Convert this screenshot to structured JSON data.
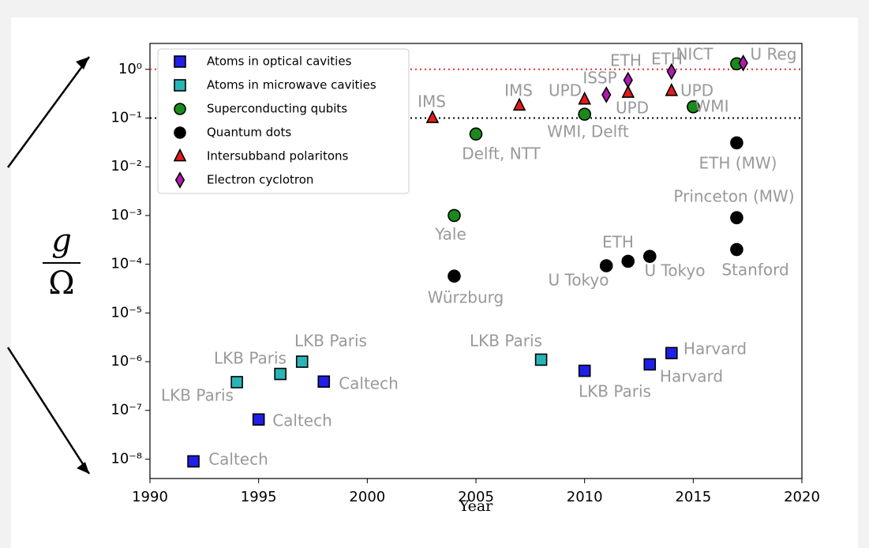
{
  "chart_data": {
    "type": "scatter",
    "xlabel": "Year",
    "ylabel": {
      "numerator": "g",
      "denominator": "Ω"
    },
    "xlim": [
      1990,
      2020
    ],
    "xticks": [
      1990,
      1995,
      2000,
      2005,
      2010,
      2015,
      2020
    ],
    "ylim": [
      4e-09,
      3.4
    ],
    "log_y": true,
    "yticks": [
      {
        "value": 1,
        "label": "10⁰"
      },
      {
        "value": 0.1,
        "label": "10⁻¹"
      },
      {
        "value": 0.01,
        "label": "10⁻²"
      },
      {
        "value": 0.001,
        "label": "10⁻³"
      },
      {
        "value": 0.0001,
        "label": "10⁻⁴"
      },
      {
        "value": 1e-05,
        "label": "10⁻⁵"
      },
      {
        "value": 1e-06,
        "label": "10⁻⁶"
      },
      {
        "value": 1e-07,
        "label": "10⁻⁷"
      },
      {
        "value": 1e-08,
        "label": "10⁻⁸"
      }
    ],
    "legend": "upper left",
    "hlines": [
      {
        "value": 1,
        "color": "#e8302a"
      },
      {
        "value": 0.1,
        "color": "#000000"
      }
    ],
    "series": [
      {
        "name": "Atoms in optical cavities",
        "marker": "square",
        "color": "#1f1fe6",
        "x": [
          1992,
          1995,
          1998,
          2010,
          2013,
          2014
        ],
        "values": [
          9e-09,
          6.5e-08,
          3.9e-07,
          6.5e-07,
          8.8e-07,
          1.5e-06
        ]
      },
      {
        "name": "Atoms in microwave cavities",
        "marker": "square",
        "color": "#27b5b5",
        "x": [
          1994,
          1996,
          1997,
          2008
        ],
        "values": [
          3.8e-07,
          5.6e-07,
          1e-06,
          1.1e-06
        ]
      },
      {
        "name": "Superconducting qubits",
        "marker": "circle",
        "color": "#1a8a1a",
        "x": [
          2004,
          2005,
          2010,
          2015,
          2017
        ],
        "values": [
          0.001,
          0.047,
          0.12,
          0.17,
          1.3
        ]
      },
      {
        "name": "Quantum dots",
        "marker": "circle",
        "color": "#000000",
        "x": [
          2004,
          2011,
          2012,
          2013,
          2017,
          2017,
          2017
        ],
        "values": [
          5.7e-05,
          9.3e-05,
          0.000115,
          0.000145,
          0.0002,
          0.0009,
          0.031
        ]
      },
      {
        "name": "Intersubband polaritons",
        "marker": "triangle",
        "color": "#e61a1a",
        "x": [
          2003,
          2007,
          2010,
          2012,
          2014
        ],
        "values": [
          0.1,
          0.18,
          0.24,
          0.33,
          0.36
        ]
      },
      {
        "name": "Electron cyclotron",
        "marker": "diamond",
        "color": "#b01ab0",
        "x": [
          2011,
          2012,
          2014,
          2017.3
        ],
        "values": [
          0.3,
          0.6,
          0.9,
          1.35
        ]
      }
    ],
    "annotations": [
      "IMS",
      "IMS",
      "UPD",
      "ISSP",
      "ETH",
      "ETH",
      "NICT",
      "U Reg",
      "UPD",
      "UPD",
      "WMI",
      "WMI, Delft",
      "Delft, NTT",
      "ETH (MW)",
      "Princeton (MW)",
      "Yale",
      "ETH",
      "U Tokyo",
      "U Tokyo",
      "Stanford",
      "Würzburg",
      "LKB Paris",
      "LKB Paris",
      "LKB Paris",
      "Harvard",
      "Harvard",
      "LKB Paris",
      "Caltech",
      "LKB Paris",
      "Caltech",
      "Caltech"
    ]
  }
}
